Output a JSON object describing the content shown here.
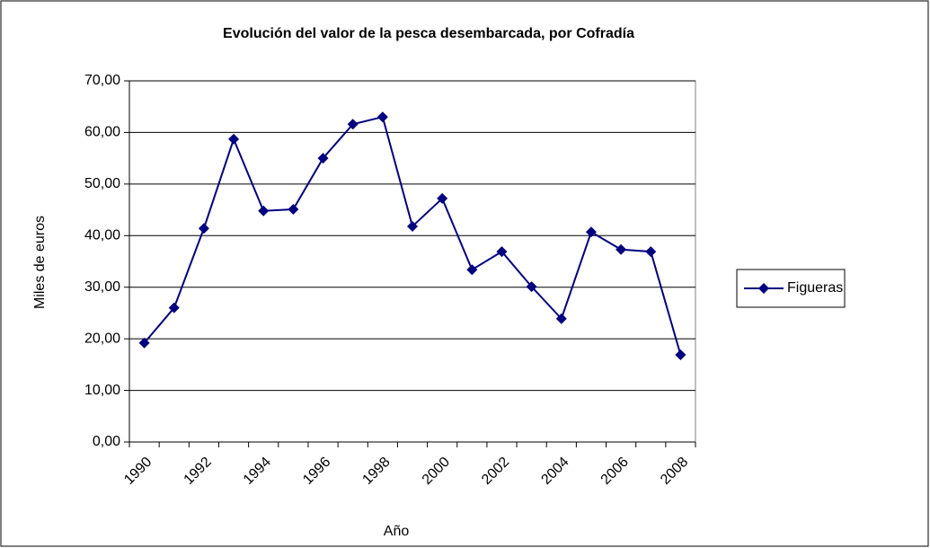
{
  "chart_data": {
    "type": "line",
    "title": "Evolución del valor de la pesca desembarcada, por Cofradía",
    "x_label": "Año",
    "y_label": "Miles de euros",
    "categories": [
      "1990",
      null,
      "1992",
      null,
      "1994",
      null,
      "1996",
      null,
      "1998",
      null,
      "2000",
      null,
      "2002",
      null,
      "2004",
      null,
      "2006",
      null,
      "2008"
    ],
    "series": [
      {
        "name": "Figueras",
        "color": "#000080",
        "values": [
          19.2,
          26.0,
          41.4,
          58.7,
          44.8,
          45.1,
          55.0,
          61.6,
          63.0,
          41.8,
          47.2,
          33.4,
          36.9,
          30.1,
          23.9,
          40.7,
          37.3,
          36.9,
          16.9
        ]
      }
    ],
    "ylim": [
      0,
      70
    ],
    "yticks": [
      {
        "value": 0,
        "label": "0,00"
      },
      {
        "value": 10,
        "label": "10,00"
      },
      {
        "value": 20,
        "label": "20,00"
      },
      {
        "value": 30,
        "label": "30,00"
      },
      {
        "value": 40,
        "label": "40,00"
      },
      {
        "value": 50,
        "label": "50,00"
      },
      {
        "value": 60,
        "label": "60,00"
      },
      {
        "value": 70,
        "label": "70,00"
      }
    ],
    "grid": true,
    "legend": "right"
  }
}
